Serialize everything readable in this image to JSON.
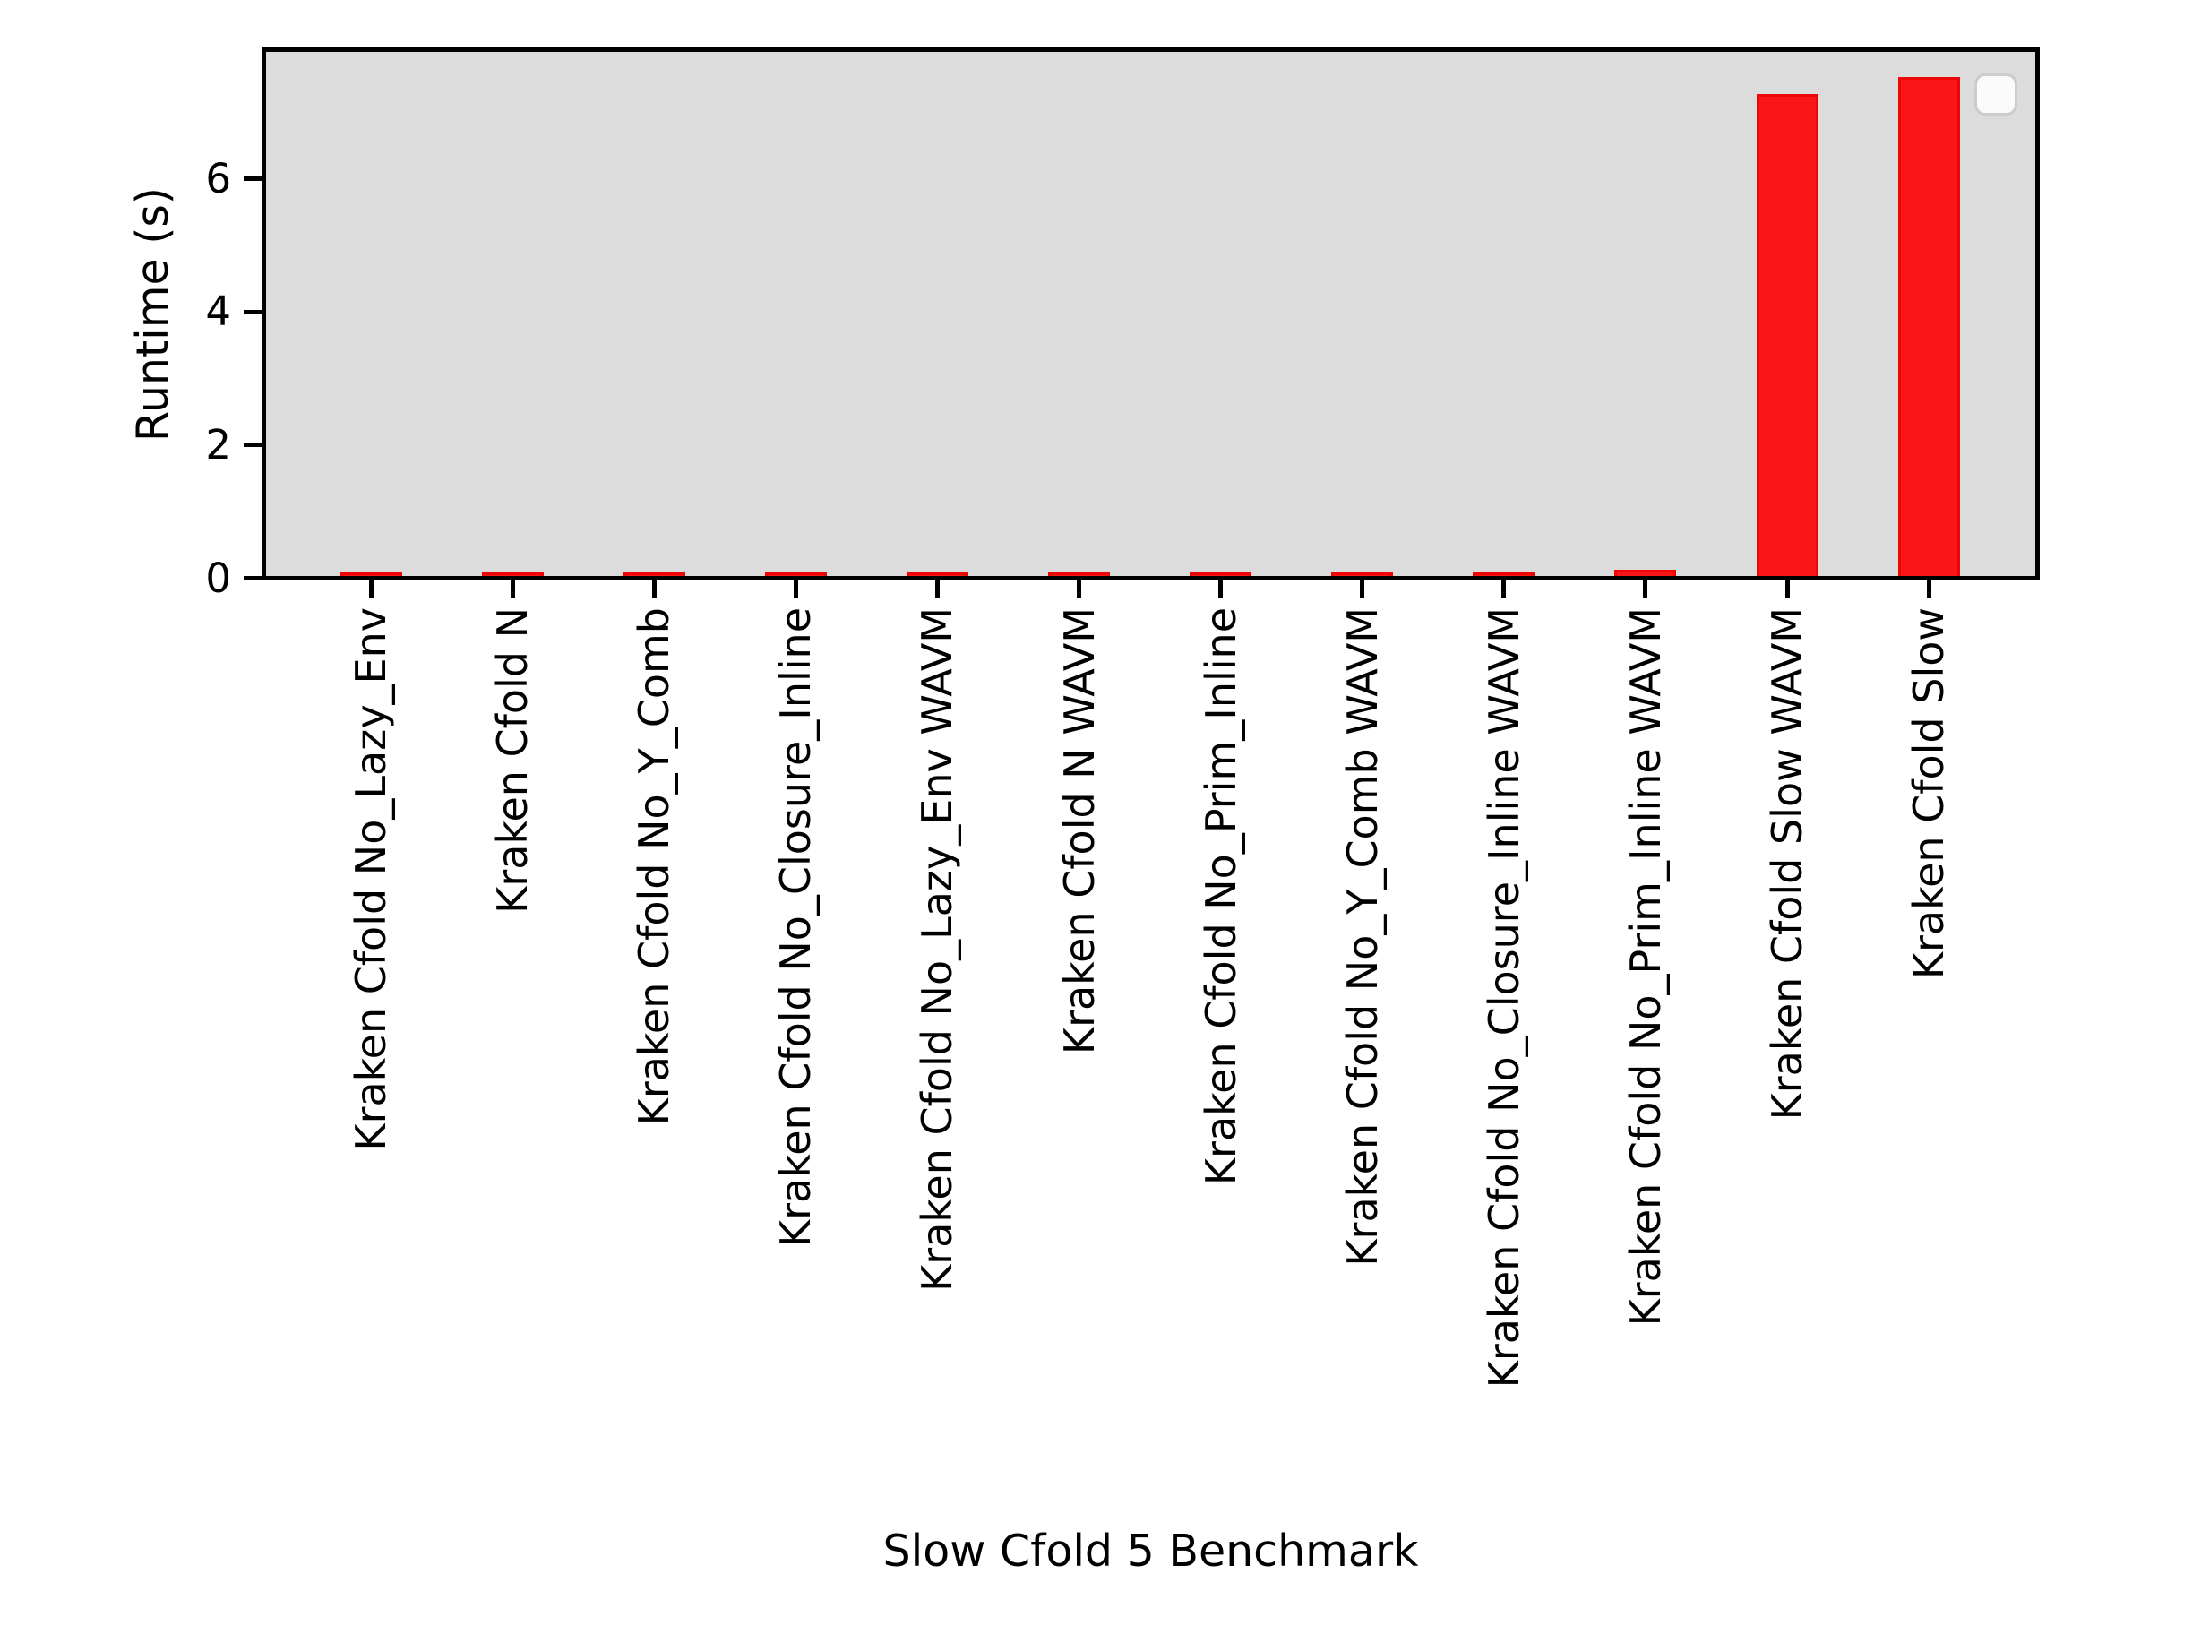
{
  "figure": {
    "background_color": "#ffffff",
    "plot_background_color": "#dcdcdc",
    "spine_color": "#000000"
  },
  "chart_data": {
    "type": "bar",
    "title": "",
    "xlabel": "Slow Cfold 5 Benchmark",
    "ylabel": "Runtime (s)",
    "categories": [
      "Kraken Cfold No_Lazy_Env",
      "Kraken Cfold N",
      "Kraken Cfold No_Y_Comb",
      "Kraken Cfold No_Closure_Inline",
      "Kraken Cfold No_Lazy_Env WAVM",
      "Kraken Cfold N WAVM",
      "Kraken Cfold No_Prim_Inline",
      "Kraken Cfold No_Y_Comb WAVM",
      "Kraken Cfold No_Closure_Inline WAVM",
      "Kraken Cfold No_Prim_Inline WAVM",
      "Kraken Cfold Slow WAVM",
      "Kraken Cfold Slow"
    ],
    "values": [
      0.04,
      0.04,
      0.04,
      0.05,
      0.05,
      0.05,
      0.06,
      0.06,
      0.06,
      0.09,
      7.24,
      7.5
    ],
    "bar_fill_color": "#fa1616",
    "bar_edge_color": "#ec0606",
    "ylim": [
      0,
      7.87
    ],
    "yticks": [
      0,
      2,
      4,
      6
    ],
    "grid": false,
    "legend": {
      "visible": true,
      "position": "upper right",
      "entries": []
    }
  }
}
